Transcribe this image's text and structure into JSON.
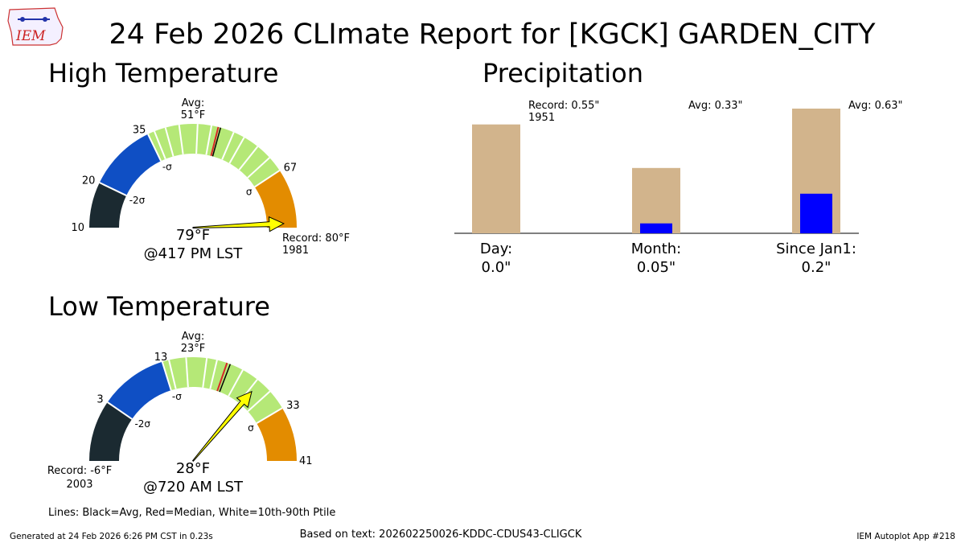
{
  "title": "24 Feb 2026 CLImate Report for [KGCK] GARDEN_CITY",
  "logo": {
    "text": "IEM",
    "name": "iem-logo"
  },
  "footer": {
    "generated": "Generated at 24 Feb 2026 6:26 PM CST in 0.23s",
    "based_on": "Based on text: 202602250026-KDDC-CDUS43-CLIGCK",
    "app": "IEM Autoplot App #218"
  },
  "legend_note": "Lines: Black=Avg, Red=Median, White=10th-90th Ptile",
  "colors": {
    "black_band": "#1b2a31",
    "blue_band": "#0f4fc4",
    "green_band": "#b5e877",
    "orange_band": "#e38c00",
    "needle": "#ffff00",
    "median_line": "#d62728",
    "avg_line": "#000000",
    "precip_avg_bar": "#d2b48c",
    "precip_obs_bar": "#0000ff"
  },
  "chart_data": [
    {
      "type": "gauge",
      "panel": "high",
      "title": "High Temperature",
      "min": 10,
      "max": 80,
      "avg": 51,
      "median": 50.5,
      "avg_label": [
        "Avg:",
        "51°F"
      ],
      "bands": [
        {
          "from": 10,
          "to": 20,
          "color": "black_band"
        },
        {
          "from": 20,
          "to": 35,
          "color": "blue_band"
        },
        {
          "from": 35,
          "to": 67,
          "color": "green_band"
        },
        {
          "from": 67,
          "to": 80,
          "color": "orange_band"
        }
      ],
      "tick_labels": [
        {
          "value": 10,
          "text": "10"
        },
        {
          "value": 20,
          "text": "20"
        },
        {
          "value": 35,
          "text": "35"
        },
        {
          "value": 67,
          "text": "67"
        }
      ],
      "sigma_labels": [
        {
          "value": 20,
          "text": "-2σ"
        },
        {
          "value": 35,
          "text": "-σ"
        },
        {
          "value": 67,
          "text": "σ"
        }
      ],
      "percentile_lines": [
        36.5,
        39,
        42,
        46,
        49,
        54,
        56.5,
        60,
        63.5
      ],
      "observed": 79,
      "observed_label": [
        "79°F",
        "@417 PM LST"
      ],
      "record_label": [
        "Record: 80°F",
        "1981"
      ],
      "record_side": "right"
    },
    {
      "type": "gauge",
      "panel": "low",
      "title": "Low Temperature",
      "min": -6,
      "max": 41,
      "avg": 23,
      "median": 22.5,
      "avg_label": [
        "Avg:",
        "23°F"
      ],
      "bands": [
        {
          "from": -6,
          "to": 3,
          "color": "black_band"
        },
        {
          "from": 3,
          "to": 13,
          "color": "blue_band"
        },
        {
          "from": 13,
          "to": 33,
          "color": "green_band"
        },
        {
          "from": 33,
          "to": 41,
          "color": "orange_band"
        }
      ],
      "tick_labels": [
        {
          "value": 3,
          "text": "3"
        },
        {
          "value": 13,
          "text": "13"
        },
        {
          "value": 33,
          "text": "33"
        },
        {
          "value": 41,
          "text": "41"
        }
      ],
      "sigma_labels": [
        {
          "value": 3,
          "text": "-2σ"
        },
        {
          "value": 13,
          "text": "-σ"
        },
        {
          "value": 33,
          "text": "σ"
        }
      ],
      "percentile_lines": [
        14,
        16.5,
        19.5,
        21,
        25,
        27.5,
        30
      ],
      "observed": 28,
      "observed_label": [
        "28°F",
        "@720 AM LST"
      ],
      "record_label": [
        "Record: -6°F",
        "2003"
      ],
      "record_side": "left"
    },
    {
      "type": "bar",
      "panel": "precip",
      "title": "Precipitation",
      "ylim": [
        0,
        0.63
      ],
      "categories": [
        "Day:",
        "Month:",
        "Since Jan1:"
      ],
      "observed": [
        0.0,
        0.05,
        0.2
      ],
      "observed_labels": [
        "0.0\"",
        "0.05\"",
        "0.2\""
      ],
      "reference": [
        0.55,
        0.33,
        0.63
      ],
      "reference_labels": [
        [
          "Record: 0.55\"",
          "1951"
        ],
        [
          "Avg: 0.33\""
        ],
        [
          "Avg: 0.63\""
        ]
      ]
    }
  ]
}
